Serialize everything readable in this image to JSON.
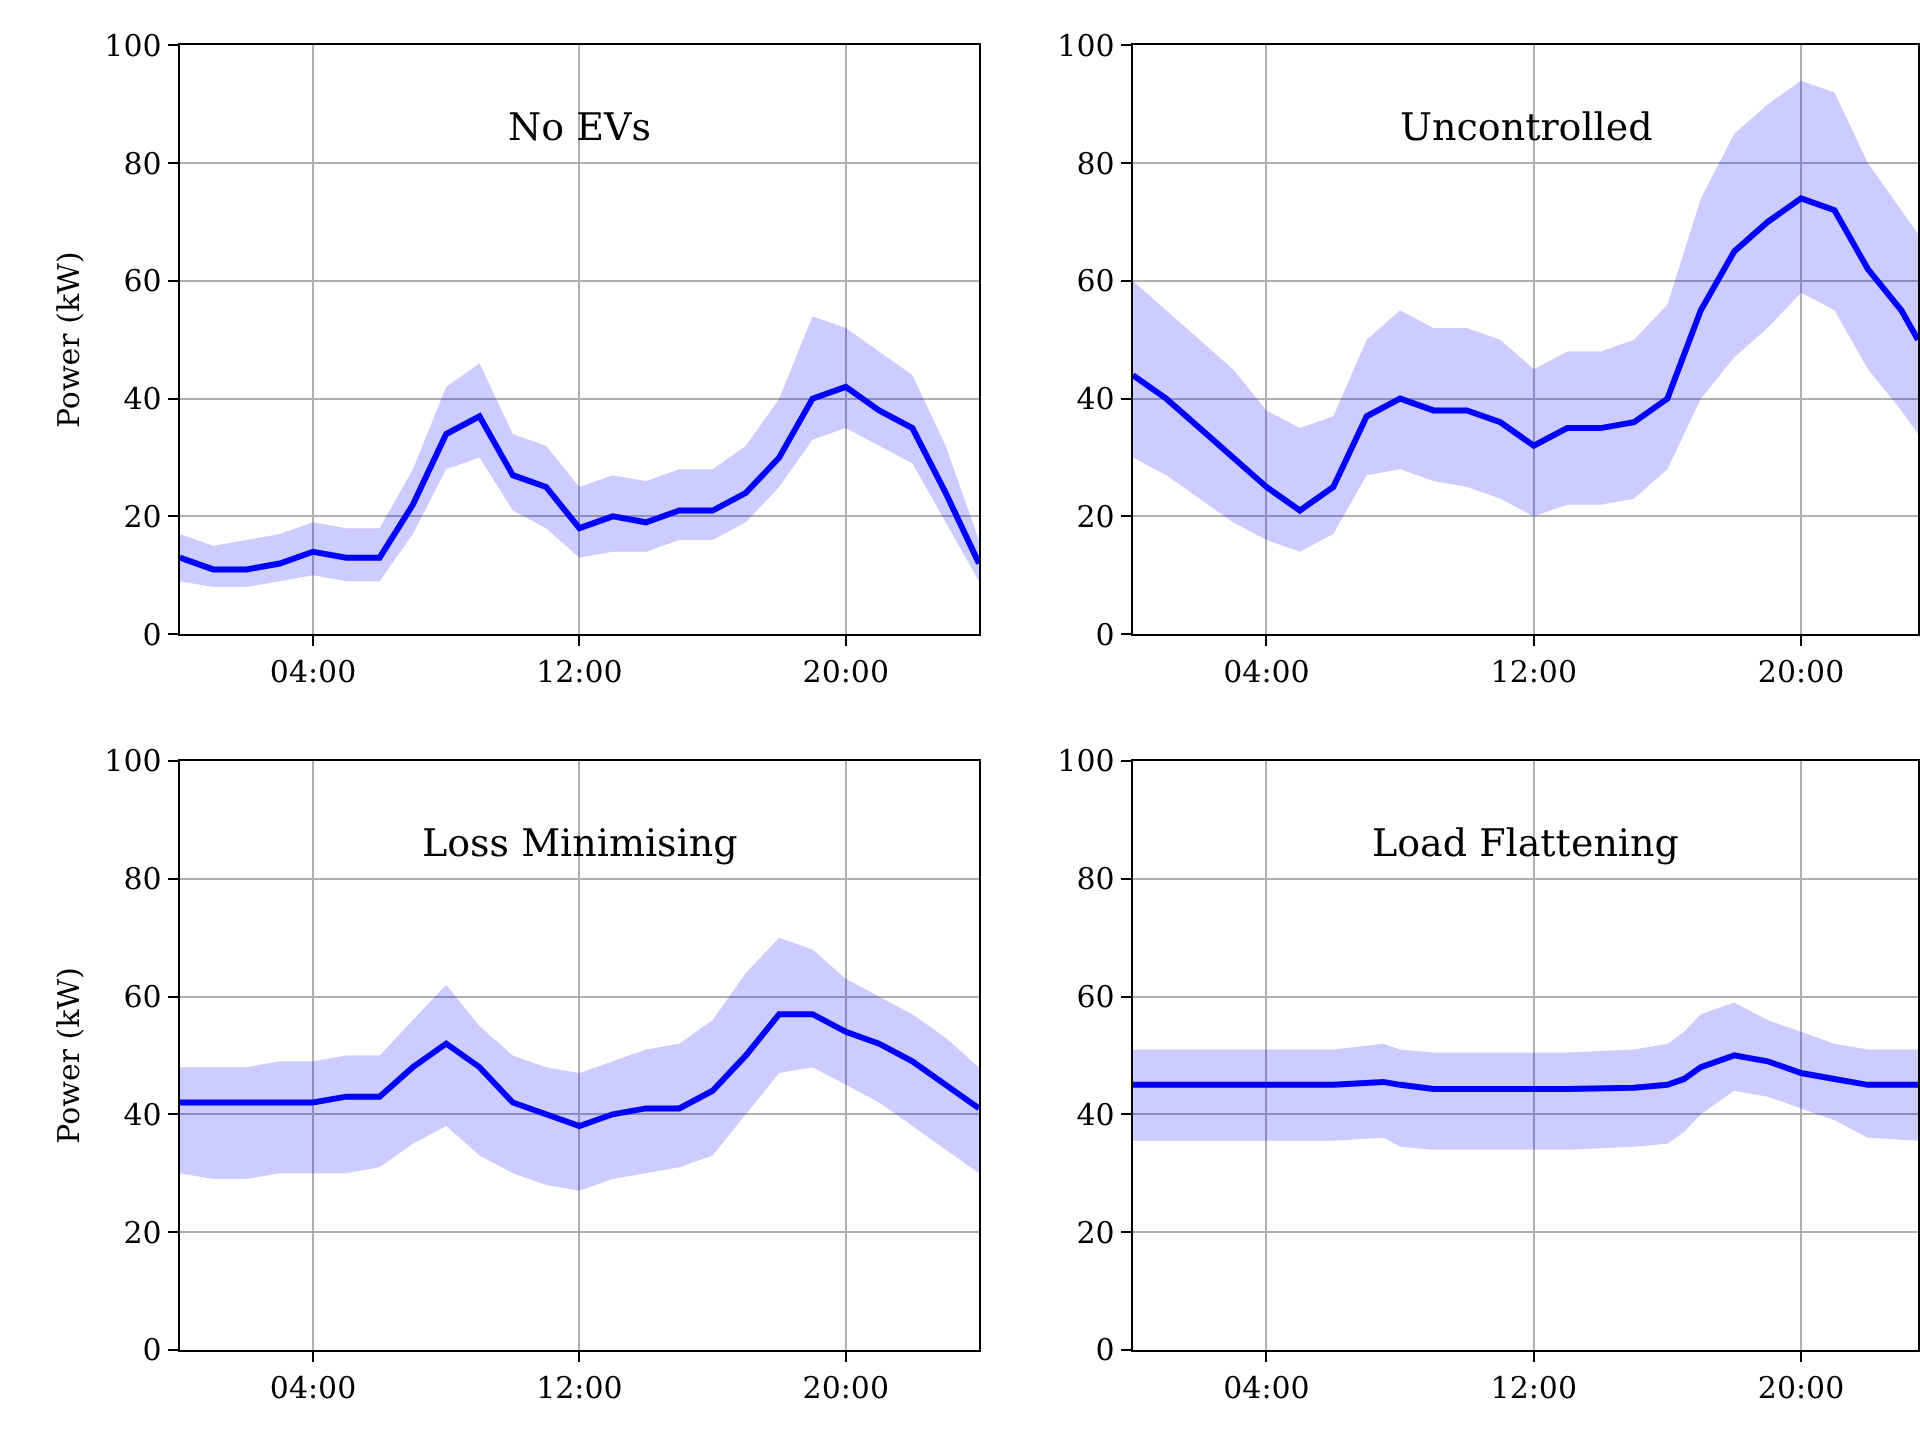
{
  "chart_data": [
    {
      "type": "line",
      "title": "No EVs",
      "ylabel": "Power (kW)",
      "xlim": [
        0,
        24
      ],
      "ylim": [
        0,
        100
      ],
      "xticks": [
        {
          "value": 4,
          "label": "04:00"
        },
        {
          "value": 12,
          "label": "12:00"
        },
        {
          "value": 20,
          "label": "20:00"
        }
      ],
      "yticks": [
        0,
        20,
        40,
        60,
        80,
        100
      ],
      "grid": true,
      "line_style": "solid",
      "marker": "none",
      "x": [
        0,
        1,
        2,
        3,
        4,
        5,
        6,
        7,
        8,
        9,
        10,
        11,
        12,
        13,
        14,
        15,
        16,
        17,
        18,
        19,
        20,
        21,
        22,
        23,
        24
      ],
      "series": [
        {
          "color": "#0000ff",
          "values": [
            13,
            11,
            11,
            12,
            14,
            13,
            13,
            22,
            34,
            37,
            27,
            25,
            18,
            20,
            19,
            21,
            21,
            24,
            30,
            40,
            42,
            38,
            35,
            24,
            12
          ],
          "lower": [
            9,
            8,
            8,
            9,
            10,
            9,
            9,
            17,
            28,
            30,
            21,
            18,
            13,
            14,
            14,
            16,
            16,
            19,
            25,
            33,
            35,
            32,
            29,
            19,
            9
          ],
          "upper": [
            17,
            15,
            16,
            17,
            19,
            18,
            18,
            28,
            42,
            46,
            34,
            32,
            25,
            27,
            26,
            28,
            28,
            32,
            40,
            54,
            52,
            48,
            44,
            32,
            16
          ]
        }
      ]
    },
    {
      "type": "line",
      "title": "Uncontrolled",
      "xlim": [
        0,
        23.5
      ],
      "ylim": [
        0,
        100
      ],
      "xticks": [
        {
          "value": 4,
          "label": "04:00"
        },
        {
          "value": 12,
          "label": "12:00"
        },
        {
          "value": 20,
          "label": "20:00"
        }
      ],
      "yticks": [
        0,
        20,
        40,
        60,
        80,
        100
      ],
      "grid": true,
      "line_style": "solid",
      "marker": "none",
      "x": [
        0,
        1,
        2,
        3,
        4,
        5,
        6,
        7,
        8,
        9,
        10,
        11,
        12,
        13,
        14,
        15,
        16,
        17,
        18,
        19,
        20,
        21,
        22,
        23,
        23.5
      ],
      "series": [
        {
          "color": "#0000ff",
          "values": [
            44,
            40,
            35,
            30,
            25,
            21,
            25,
            37,
            40,
            38,
            38,
            36,
            32,
            35,
            35,
            36,
            40,
            55,
            65,
            70,
            74,
            72,
            62,
            55,
            50
          ],
          "lower": [
            30,
            27,
            23,
            19,
            16,
            14,
            17,
            27,
            28,
            26,
            25,
            23,
            20,
            22,
            22,
            23,
            28,
            40,
            47,
            52,
            58,
            55,
            45,
            38,
            34
          ],
          "upper": [
            60,
            55,
            50,
            45,
            38,
            35,
            37,
            50,
            55,
            52,
            52,
            50,
            45,
            48,
            48,
            50,
            56,
            74,
            85,
            90,
            94,
            92,
            80,
            72,
            68
          ]
        }
      ]
    },
    {
      "type": "line",
      "title": "Loss Minimising",
      "ylabel": "Power (kW)",
      "xlim": [
        0,
        24
      ],
      "ylim": [
        0,
        100
      ],
      "xticks": [
        {
          "value": 4,
          "label": "04:00"
        },
        {
          "value": 12,
          "label": "12:00"
        },
        {
          "value": 20,
          "label": "20:00"
        }
      ],
      "yticks": [
        0,
        20,
        40,
        60,
        80,
        100
      ],
      "grid": true,
      "line_style": "solid",
      "marker": "none",
      "x": [
        0,
        1,
        2,
        3,
        4,
        5,
        6,
        7,
        8,
        9,
        10,
        11,
        12,
        13,
        14,
        15,
        16,
        17,
        18,
        19,
        20,
        21,
        22,
        23,
        24
      ],
      "series": [
        {
          "color": "#0000ff",
          "values": [
            42,
            42,
            42,
            42,
            42,
            43,
            43,
            48,
            52,
            48,
            42,
            40,
            38,
            40,
            41,
            41,
            44,
            50,
            57,
            57,
            54,
            52,
            49,
            45,
            41
          ],
          "lower": [
            30,
            29,
            29,
            30,
            30,
            30,
            31,
            35,
            38,
            33,
            30,
            28,
            27,
            29,
            30,
            31,
            33,
            40,
            47,
            48,
            45,
            42,
            38,
            34,
            30
          ],
          "upper": [
            48,
            48,
            48,
            49,
            49,
            50,
            50,
            56,
            62,
            55,
            50,
            48,
            47,
            49,
            51,
            52,
            56,
            64,
            70,
            68,
            63,
            60,
            57,
            53,
            48
          ]
        }
      ]
    },
    {
      "type": "line",
      "title": "Load Flattening",
      "xlim": [
        0,
        23.5
      ],
      "ylim": [
        0,
        100
      ],
      "xticks": [
        {
          "value": 4,
          "label": "04:00"
        },
        {
          "value": 12,
          "label": "12:00"
        },
        {
          "value": 20,
          "label": "20:00"
        }
      ],
      "yticks": [
        0,
        20,
        40,
        60,
        80,
        100
      ],
      "grid": true,
      "line_style": "solid",
      "marker": "none",
      "x": [
        0,
        2,
        4,
        6,
        7.5,
        8,
        9,
        11,
        13,
        15,
        16,
        16.5,
        17,
        18,
        19,
        20,
        21,
        22,
        23.5
      ],
      "series": [
        {
          "color": "#0000ff",
          "values": [
            45,
            45,
            45,
            45,
            45.5,
            45,
            44.3,
            44.3,
            44.3,
            44.5,
            45,
            46,
            48,
            50,
            49,
            47,
            46,
            45,
            45
          ],
          "lower": [
            35.5,
            35.5,
            35.5,
            35.5,
            36,
            34.5,
            34,
            34,
            34,
            34.5,
            35,
            37,
            40,
            44,
            43,
            41,
            39,
            36,
            35.5
          ],
          "upper": [
            51,
            51,
            51,
            51,
            52,
            51,
            50.5,
            50.5,
            50.5,
            51,
            52,
            54,
            57,
            59,
            56,
            54,
            52,
            51,
            51
          ]
        }
      ]
    }
  ]
}
